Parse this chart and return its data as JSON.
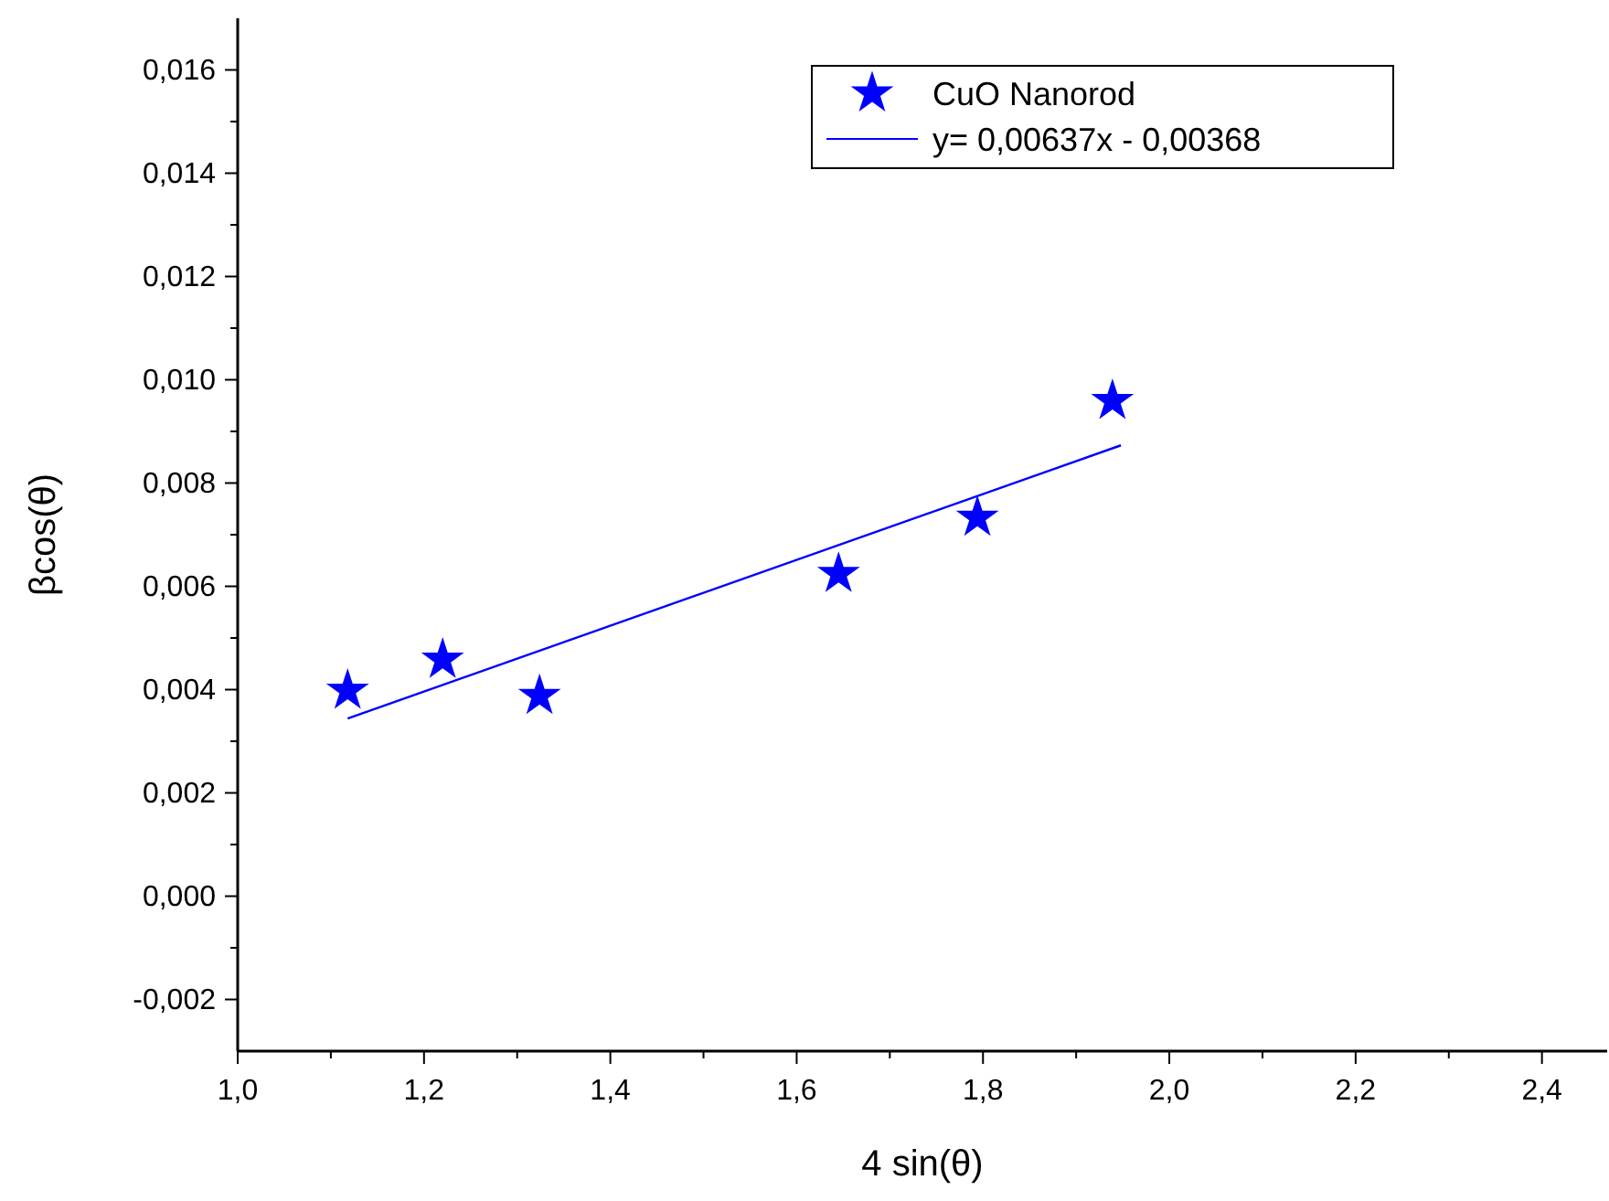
{
  "chart_data": {
    "type": "scatter",
    "xlabel": "4 sin(θ)",
    "ylabel": "βcos(θ)",
    "xlim": [
      1.0,
      2.47
    ],
    "ylim": [
      -0.003,
      0.017
    ],
    "xticks": [
      {
        "value": 1.0,
        "label": "1,0"
      },
      {
        "value": 1.1,
        "label": null
      },
      {
        "value": 1.2,
        "label": "1,2"
      },
      {
        "value": 1.3,
        "label": null
      },
      {
        "value": 1.4,
        "label": "1,4"
      },
      {
        "value": 1.5,
        "label": null
      },
      {
        "value": 1.6,
        "label": "1,6"
      },
      {
        "value": 1.7,
        "label": null
      },
      {
        "value": 1.8,
        "label": "1,8"
      },
      {
        "value": 1.9,
        "label": null
      },
      {
        "value": 2.0,
        "label": "2,0"
      },
      {
        "value": 2.1,
        "label": null
      },
      {
        "value": 2.2,
        "label": "2,2"
      },
      {
        "value": 2.3,
        "label": null
      },
      {
        "value": 2.4,
        "label": "2,4"
      }
    ],
    "yticks": [
      {
        "value": -0.002,
        "label": "-0,002"
      },
      {
        "value": -0.001,
        "label": null
      },
      {
        "value": 0,
        "label": "0,000"
      },
      {
        "value": 0.001,
        "label": null
      },
      {
        "value": 0.002,
        "label": "0,002"
      },
      {
        "value": 0.003,
        "label": null
      },
      {
        "value": 0.004,
        "label": "0,004"
      },
      {
        "value": 0.005,
        "label": null
      },
      {
        "value": 0.006,
        "label": "0,006"
      },
      {
        "value": 0.007,
        "label": null
      },
      {
        "value": 0.008,
        "label": "0,008"
      },
      {
        "value": 0.009,
        "label": null
      },
      {
        "value": 0.01,
        "label": "0,010"
      },
      {
        "value": 0.011,
        "label": null
      },
      {
        "value": 0.012,
        "label": "0,012"
      },
      {
        "value": 0.013,
        "label": null
      },
      {
        "value": 0.014,
        "label": "0,014"
      },
      {
        "value": 0.015,
        "label": null
      },
      {
        "value": 0.016,
        "label": "0,016"
      }
    ],
    "legend": "top right",
    "grid": false,
    "series": [
      {
        "name": "CuO Nanorod",
        "type": "scatter",
        "marker": "star",
        "color": "#0000ff",
        "x": [
          1.118,
          1.22,
          1.324,
          1.645,
          1.794,
          1.939
        ],
        "values": [
          0.00398,
          0.00458,
          0.00388,
          0.00624,
          0.00733,
          0.00959
        ]
      },
      {
        "name": "y= 0,00637x - 0,00368",
        "type": "line",
        "line_style": "solid",
        "marker": "none",
        "color": "#0000ff",
        "x": [
          1.118,
          1.948
        ],
        "values": [
          0.00344,
          0.00873
        ]
      }
    ]
  }
}
